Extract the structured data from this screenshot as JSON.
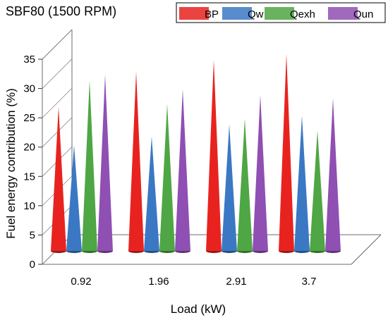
{
  "chart_data": {
    "type": "bar",
    "title": "SBF80 (1500 RPM)",
    "xlabel": "Load (kW)",
    "ylabel": "Fuel energy contribution (%)",
    "ylim": [
      0,
      35
    ],
    "yticks": [
      0,
      5,
      10,
      15,
      20,
      25,
      30,
      35
    ],
    "categories": [
      "0.92",
      "1.96",
      "2.91",
      "3.7"
    ],
    "series": [
      {
        "name": "BP",
        "color": "#e8231f",
        "values": [
          24.5,
          30.5,
          32.5,
          33.5
        ]
      },
      {
        "name": "Qw",
        "color": "#3b78c4",
        "values": [
          18.0,
          19.5,
          21.5,
          23.0
        ]
      },
      {
        "name": "Qexh",
        "color": "#4fa644",
        "values": [
          29.0,
          25.0,
          22.5,
          20.5
        ]
      },
      {
        "name": "Qun",
        "color": "#8f4fb3",
        "values": [
          30.0,
          27.5,
          26.5,
          26.0
        ]
      }
    ],
    "bar_shape": "cone",
    "grid": false,
    "legend_position": "top-right"
  }
}
